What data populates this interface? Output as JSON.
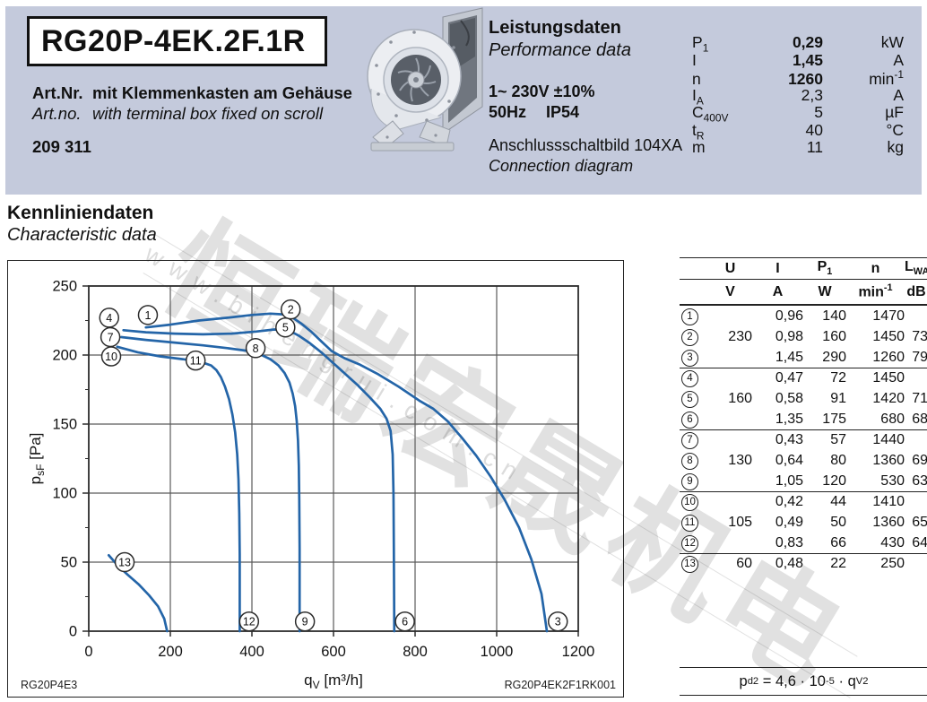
{
  "header": {
    "model": "RG20P-4EK.2F.1R",
    "art_label_de": "Art.Nr.",
    "art_desc_de": "mit Klemmenkasten am Gehäuse",
    "art_label_en": "Art.no.",
    "art_desc_en": "with terminal box fixed on scroll",
    "art_number": "209 311",
    "perf_title_de": "Leistungsdaten",
    "perf_title_en": "Performance data",
    "voltage": "1~ 230V ±10%",
    "frequency": "50Hz",
    "protection": "IP54",
    "connection_de": "Anschlussschaltbild 104XA",
    "connection_en": "Connection diagram",
    "params": [
      {
        "sym": "P",
        "sub": "1",
        "value": "0,29",
        "unit": "kW",
        "bold": true
      },
      {
        "sym": "I",
        "sub": "",
        "value": "1,45",
        "unit": "A",
        "bold": true
      },
      {
        "sym": "n",
        "sub": "",
        "value": "1260",
        "unit": "min⁻¹",
        "bold": true
      },
      {
        "sym": "I",
        "sub": "A",
        "value": "2,3",
        "unit": "A",
        "bold": false
      },
      {
        "sym": "C",
        "sub": "400V",
        "value": "5",
        "unit": "µF",
        "bold": false
      },
      {
        "sym": "t",
        "sub": "R",
        "value": "40",
        "unit": "°C",
        "bold": false
      },
      {
        "sym": "m",
        "sub": "",
        "value": "11",
        "unit": "kg",
        "bold": false
      }
    ]
  },
  "section": {
    "title_de": "Kennliniendaten",
    "title_en": "Characteristic data"
  },
  "chart_data": {
    "type": "line",
    "title": "",
    "xlabel": {
      "pre": "q",
      "sub": "V",
      "post": " [m³/h]"
    },
    "ylabel": {
      "pre": "p",
      "sub": "sF",
      "post": " [Pa]"
    },
    "xlim": [
      0,
      1200
    ],
    "ylim": [
      0,
      250
    ],
    "x_ticks": [
      0,
      200,
      400,
      600,
      800,
      1000,
      1200
    ],
    "y_ticks": [
      0,
      50,
      100,
      150,
      200,
      250
    ],
    "y_minor_step": 25,
    "grid": true,
    "legend_position": "none",
    "curve_color": "#2465a8",
    "footer_left": "RG20P4E3",
    "footer_right": "RG20P4EK2F1RK001",
    "series": [
      {
        "name": "230 V",
        "points": [
          [
            140,
            220
          ],
          [
            200,
            222
          ],
          [
            270,
            225
          ],
          [
            340,
            227
          ],
          [
            400,
            229
          ],
          [
            445,
            230
          ],
          [
            475,
            229.5
          ],
          [
            500,
            227
          ],
          [
            520,
            223
          ],
          [
            545,
            217
          ],
          [
            570,
            210
          ],
          [
            595,
            203
          ],
          [
            625,
            198
          ],
          [
            665,
            193
          ],
          [
            710,
            186
          ],
          [
            760,
            177
          ],
          [
            810,
            167
          ],
          [
            845,
            161
          ],
          [
            880,
            152
          ],
          [
            915,
            140
          ],
          [
            950,
            127
          ],
          [
            985,
            112
          ],
          [
            1020,
            95
          ],
          [
            1055,
            75
          ],
          [
            1085,
            52
          ],
          [
            1110,
            27
          ],
          [
            1123,
            0
          ]
        ]
      },
      {
        "name": "160 V",
        "points": [
          [
            85,
            218
          ],
          [
            140,
            216.5
          ],
          [
            210,
            215.5
          ],
          [
            280,
            215
          ],
          [
            350,
            215.5
          ],
          [
            410,
            217
          ],
          [
            455,
            218.5
          ],
          [
            490,
            218
          ],
          [
            515,
            214
          ],
          [
            540,
            209
          ],
          [
            570,
            202
          ],
          [
            600,
            194
          ],
          [
            630,
            186
          ],
          [
            660,
            178
          ],
          [
            690,
            169
          ],
          [
            715,
            161
          ],
          [
            730,
            154
          ],
          [
            740,
            145
          ],
          [
            745,
            128
          ],
          [
            747,
            100
          ],
          [
            748,
            60
          ],
          [
            749,
            0
          ]
        ]
      },
      {
        "name": "130 V",
        "points": [
          [
            80,
            213
          ],
          [
            140,
            211
          ],
          [
            210,
            209
          ],
          [
            280,
            207
          ],
          [
            340,
            205
          ],
          [
            390,
            203
          ],
          [
            420,
            200.5
          ],
          [
            445,
            197
          ],
          [
            465,
            192.5
          ],
          [
            480,
            187
          ],
          [
            492,
            180
          ],
          [
            500,
            172
          ],
          [
            506,
            163
          ],
          [
            510,
            152
          ],
          [
            513,
            138
          ],
          [
            515,
            120
          ],
          [
            516,
            95
          ],
          [
            517,
            60
          ],
          [
            517,
            0
          ]
        ]
      },
      {
        "name": "105 V",
        "points": [
          [
            70,
            206
          ],
          [
            120,
            202
          ],
          [
            175,
            199
          ],
          [
            230,
            197
          ],
          [
            275,
            195
          ],
          [
            300,
            192.5
          ],
          [
            313,
            189
          ],
          [
            324,
            184
          ],
          [
            334,
            177
          ],
          [
            344,
            168
          ],
          [
            352,
            157
          ],
          [
            359,
            144
          ],
          [
            364,
            128
          ],
          [
            367,
            110
          ],
          [
            369,
            85
          ],
          [
            370,
            55
          ],
          [
            370,
            0
          ]
        ]
      },
      {
        "name": "60 V",
        "points": [
          [
            49,
            55
          ],
          [
            70,
            48
          ],
          [
            95,
            41
          ],
          [
            122,
            34
          ],
          [
            148,
            26
          ],
          [
            170,
            18
          ],
          [
            185,
            9
          ],
          [
            192,
            0
          ]
        ]
      }
    ],
    "point_labels": [
      {
        "n": "1",
        "x": 145,
        "y": 229
      },
      {
        "n": "2",
        "x": 495,
        "y": 233
      },
      {
        "n": "3",
        "x": 1150,
        "y": 7
      },
      {
        "n": "4",
        "x": 50,
        "y": 227
      },
      {
        "n": "5",
        "x": 482,
        "y": 220
      },
      {
        "n": "6",
        "x": 775,
        "y": 7
      },
      {
        "n": "7",
        "x": 53,
        "y": 213
      },
      {
        "n": "8",
        "x": 409,
        "y": 205
      },
      {
        "n": "9",
        "x": 530,
        "y": 7
      },
      {
        "n": "10",
        "x": 55,
        "y": 199
      },
      {
        "n": "11",
        "x": 262,
        "y": 196
      },
      {
        "n": "12",
        "x": 393,
        "y": 7
      },
      {
        "n": "13",
        "x": 88,
        "y": 50
      }
    ]
  },
  "op_table": {
    "headers": [
      "U",
      "I",
      "P1",
      "n",
      "LWA"
    ],
    "units": [
      "V",
      "A",
      "W",
      "min⁻¹",
      "dB"
    ],
    "group_breaks": [
      3,
      6,
      9,
      12
    ],
    "rows": [
      {
        "n": "1",
        "u": "",
        "i": "0,96",
        "p": "140",
        "rpm": "1470",
        "lwa": ""
      },
      {
        "n": "2",
        "u": "230",
        "i": "0,98",
        "p": "160",
        "rpm": "1450",
        "lwa": "73"
      },
      {
        "n": "3",
        "u": "",
        "i": "1,45",
        "p": "290",
        "rpm": "1260",
        "lwa": "79"
      },
      {
        "n": "4",
        "u": "",
        "i": "0,47",
        "p": "72",
        "rpm": "1450",
        "lwa": ""
      },
      {
        "n": "5",
        "u": "160",
        "i": "0,58",
        "p": "91",
        "rpm": "1420",
        "lwa": "71"
      },
      {
        "n": "6",
        "u": "",
        "i": "1,35",
        "p": "175",
        "rpm": "680",
        "lwa": "68"
      },
      {
        "n": "7",
        "u": "",
        "i": "0,43",
        "p": "57",
        "rpm": "1440",
        "lwa": ""
      },
      {
        "n": "8",
        "u": "130",
        "i": "0,64",
        "p": "80",
        "rpm": "1360",
        "lwa": "69"
      },
      {
        "n": "9",
        "u": "",
        "i": "1,05",
        "p": "120",
        "rpm": "530",
        "lwa": "63"
      },
      {
        "n": "10",
        "u": "",
        "i": "0,42",
        "p": "44",
        "rpm": "1410",
        "lwa": ""
      },
      {
        "n": "11",
        "u": "105",
        "i": "0,49",
        "p": "50",
        "rpm": "1360",
        "lwa": "65"
      },
      {
        "n": "12",
        "u": "",
        "i": "0,83",
        "p": "66",
        "rpm": "430",
        "lwa": "64"
      },
      {
        "n": "13",
        "u": "60",
        "i": "0,48",
        "p": "22",
        "rpm": "250",
        "lwa": ""
      }
    ]
  },
  "formula": {
    "lhs_base": "p",
    "lhs_sub": "d2",
    "eq": " = 4,6 · 10",
    "exp": "-5",
    "mul": " · q",
    "q_sub": "V",
    "power": "2"
  },
  "watermark": {
    "cjk": "恒瑞宏晟机电",
    "url": "www.bihengrui.com.cn"
  }
}
